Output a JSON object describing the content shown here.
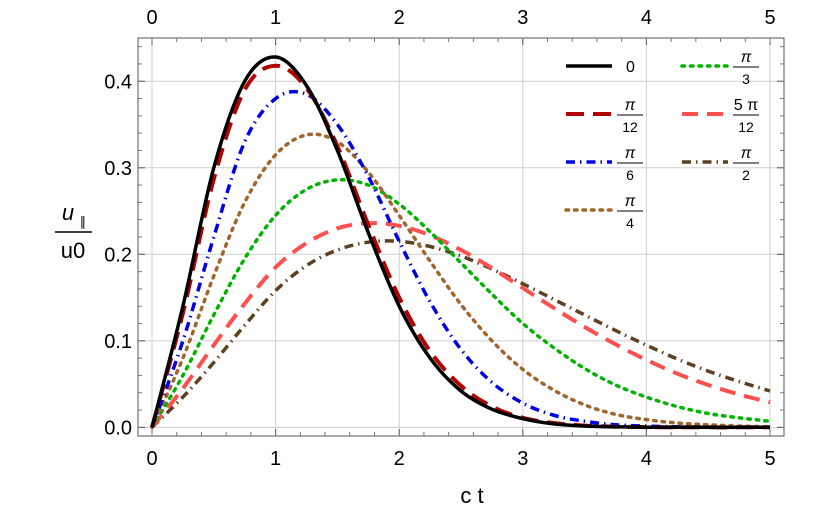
{
  "chart_data": {
    "type": "line",
    "xlabel": "c t",
    "ylabel_num": "u",
    "ylabel_sub": "∥",
    "ylabel_den": "u0",
    "xlim": [
      0,
      5
    ],
    "ylim": [
      -0.01,
      0.45
    ],
    "x_ticks": [
      0,
      1,
      2,
      3,
      4,
      5
    ],
    "x_tick_labels": [
      "0",
      "1",
      "2",
      "3",
      "4",
      "5"
    ],
    "y_ticks": [
      0.0,
      0.1,
      0.2,
      0.3,
      0.4
    ],
    "y_tick_labels": [
      "0.0",
      "0.1",
      "0.2",
      "0.3",
      "0.4"
    ],
    "grid": true,
    "legend_placement": "top-right",
    "x": [
      0,
      0.25,
      0.5,
      0.75,
      1.0,
      1.25,
      1.5,
      1.75,
      2.0,
      2.25,
      2.5,
      2.75,
      3.0,
      3.25,
      3.5,
      3.75,
      4.0,
      4.25,
      4.5,
      4.75,
      5.0
    ],
    "series": [
      {
        "label_num": "0",
        "label_den": "",
        "color": "#000000",
        "style": "solid",
        "values": [
          0.0,
          0.14,
          0.3,
          0.4,
          0.428,
          0.395,
          0.32,
          0.225,
          0.14,
          0.08,
          0.042,
          0.021,
          0.01,
          0.004,
          0.0016,
          0.0006,
          0.0002,
          0.0001,
          0.0,
          0.0,
          0.0
        ]
      },
      {
        "label_num": "π",
        "label_den": "12",
        "color": "#b30000",
        "style": "longdash",
        "values": [
          0.0,
          0.132,
          0.287,
          0.39,
          0.418,
          0.392,
          0.325,
          0.234,
          0.15,
          0.088,
          0.048,
          0.024,
          0.011,
          0.005,
          0.002,
          0.0008,
          0.0003,
          0.0001,
          0.0,
          0.0,
          0.0
        ]
      },
      {
        "label_num": "π",
        "label_den": "6",
        "color": "#0000e6",
        "style": "dashdot",
        "values": [
          0.0,
          0.1,
          0.22,
          0.33,
          0.38,
          0.385,
          0.35,
          0.29,
          0.215,
          0.145,
          0.09,
          0.052,
          0.028,
          0.014,
          0.007,
          0.003,
          0.0014,
          0.0006,
          0.0002,
          0.0001,
          0.0
        ]
      },
      {
        "label_num": "π",
        "label_den": "4",
        "color": "#a0662e",
        "style": "dotted",
        "values": [
          0.0,
          0.08,
          0.175,
          0.26,
          0.315,
          0.338,
          0.33,
          0.295,
          0.245,
          0.192,
          0.142,
          0.1,
          0.067,
          0.043,
          0.026,
          0.015,
          0.009,
          0.005,
          0.003,
          0.0015,
          0.0008
        ]
      },
      {
        "label_num": "π",
        "label_den": "3",
        "color": "#00b300",
        "style": "dotted",
        "values": [
          0.0,
          0.06,
          0.13,
          0.195,
          0.245,
          0.275,
          0.286,
          0.28,
          0.258,
          0.226,
          0.19,
          0.154,
          0.12,
          0.092,
          0.068,
          0.049,
          0.035,
          0.024,
          0.016,
          0.011,
          0.007
        ]
      },
      {
        "label_num": "5 π",
        "label_den": "12",
        "color": "#ff5050",
        "style": "dashed",
        "values": [
          0.0,
          0.045,
          0.095,
          0.143,
          0.185,
          0.213,
          0.23,
          0.236,
          0.233,
          0.222,
          0.205,
          0.184,
          0.161,
          0.138,
          0.116,
          0.096,
          0.078,
          0.062,
          0.049,
          0.038,
          0.029
        ]
      },
      {
        "label_num": "π",
        "label_den": "2",
        "color": "#5c4020",
        "style": "dashdot",
        "values": [
          0.0,
          0.035,
          0.075,
          0.118,
          0.158,
          0.187,
          0.205,
          0.214,
          0.215,
          0.209,
          0.198,
          0.183,
          0.166,
          0.148,
          0.13,
          0.112,
          0.095,
          0.079,
          0.065,
          0.053,
          0.042
        ]
      }
    ]
  }
}
